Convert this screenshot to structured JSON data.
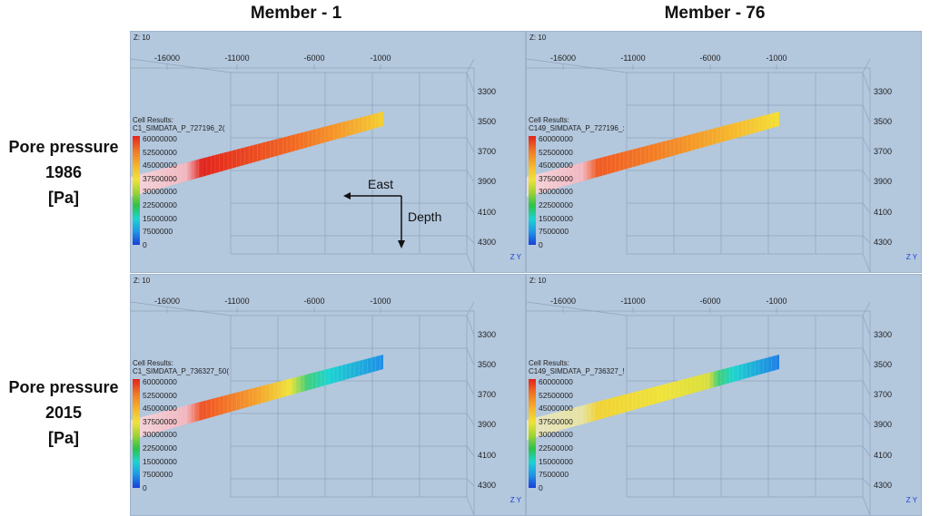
{
  "columns": [
    "Member - 1",
    "Member - 76"
  ],
  "rows": [
    {
      "lines": [
        "Pore pressure",
        "1986",
        "[Pa]"
      ]
    },
    {
      "lines": [
        "Pore pressure",
        "2015",
        "[Pa]"
      ]
    }
  ],
  "axis": {
    "z_tag": "Z: 10",
    "x_ticks": [
      "-16000",
      "-11000",
      "-6000",
      "-1000"
    ],
    "y_ticks": [
      "3300",
      "3500",
      "3700",
      "3900",
      "4100",
      "4300"
    ]
  },
  "legend_values": [
    "60000000",
    "52500000",
    "45000000",
    "37500000",
    "30000000",
    "22500000",
    "15000000",
    "7500000",
    "0"
  ],
  "panels": [
    {
      "title": "Cell Results:",
      "case": "C1_SIMDATA_P_727196_2("
    },
    {
      "title": "Cell Results:",
      "case": "C149_SIMDATA_P_727196_:"
    },
    {
      "title": "Cell Results:",
      "case": "C1_SIMDATA_P_736327_50("
    },
    {
      "title": "Cell Results:",
      "case": "C149_SIMDATA_P_736327_!"
    }
  ],
  "annotations": {
    "east": "East",
    "depth": "Depth"
  },
  "axes_icon": "Z Y",
  "colors": {
    "panel_bg": "#b3c7dd",
    "red": "#e2241c",
    "orange": "#f27a24",
    "yellow": "#efe33a",
    "green": "#2fc248",
    "cyan": "#1ed4d0",
    "blue": "#1a3fd8"
  }
}
